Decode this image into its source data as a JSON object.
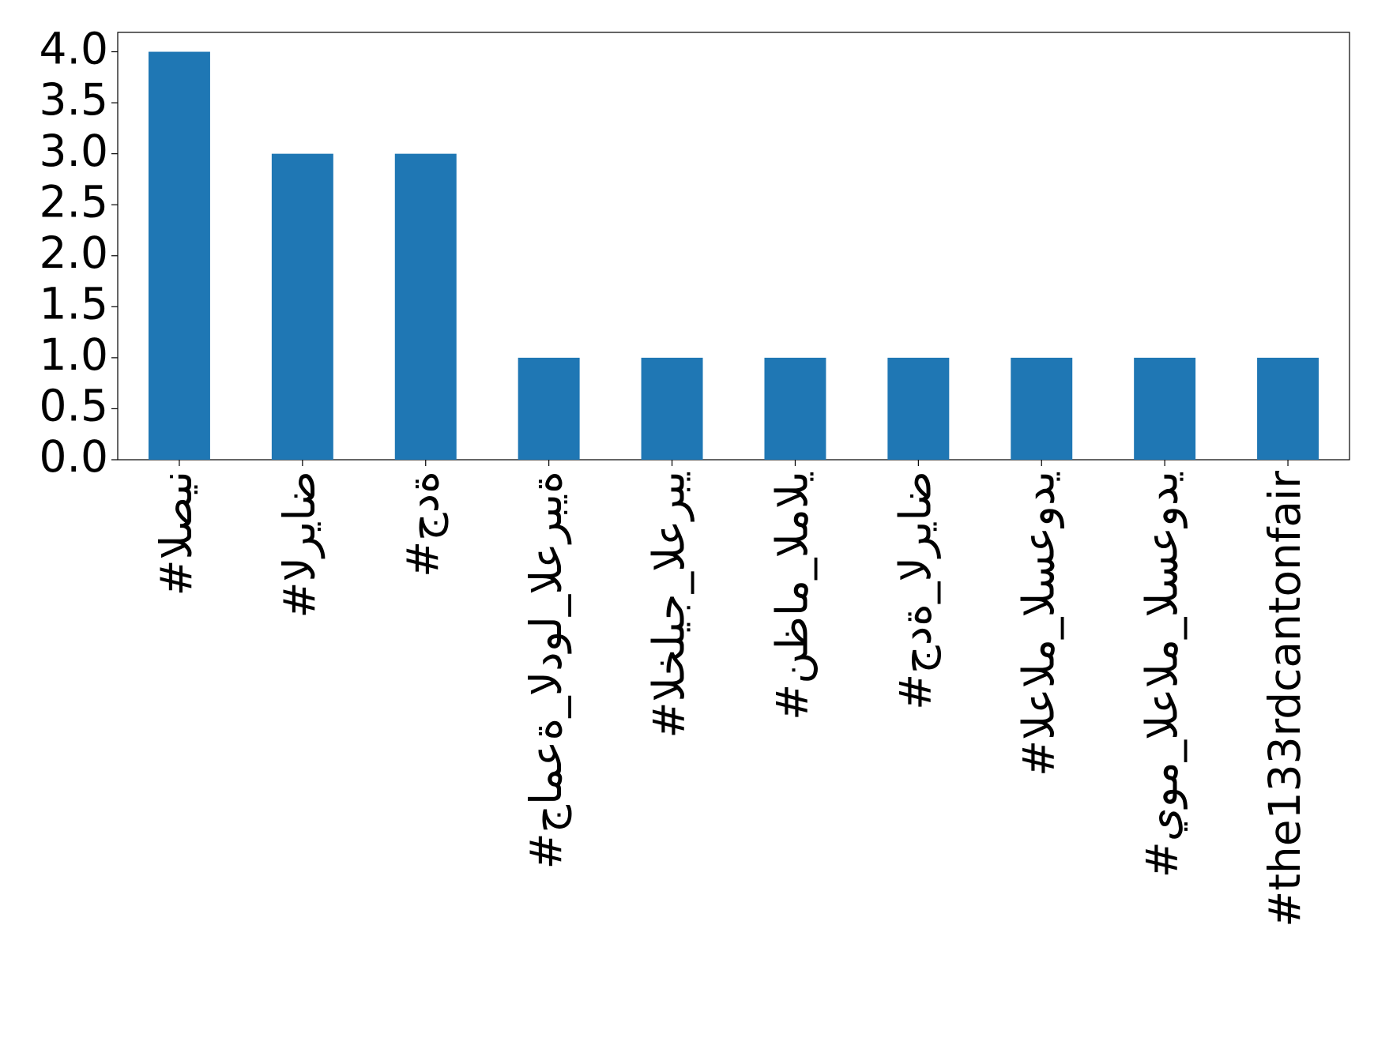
{
  "chart_data": {
    "type": "bar",
    "categories": [
      "#الصين",
      "#الرياض",
      "#جدة",
      "#جامعة_الدول_العربية",
      "#الخليج_العربي",
      "#نظام_المالي",
      "#جدة_الرياض",
      "#العالم_السعودي",
      "#يوم_العالم_السعودي",
      "#the133rdcantonfair"
    ],
    "values": [
      4,
      3,
      3,
      1,
      1,
      1,
      1,
      1,
      1,
      1
    ],
    "color": "#1f77b4",
    "ylim": [
      0,
      4.19
    ],
    "yticks": [
      {
        "value": 0,
        "label": "0.0"
      },
      {
        "value": 0.5,
        "label": "0.5"
      },
      {
        "value": 1,
        "label": "1.0"
      },
      {
        "value": 1.5,
        "label": "1.5"
      },
      {
        "value": 2,
        "label": "2.0"
      },
      {
        "value": 2.5,
        "label": "2.5"
      },
      {
        "value": 3,
        "label": "3.0"
      },
      {
        "value": 3.5,
        "label": "3.5"
      },
      {
        "value": 4,
        "label": "4.0"
      }
    ],
    "grid": false
  }
}
